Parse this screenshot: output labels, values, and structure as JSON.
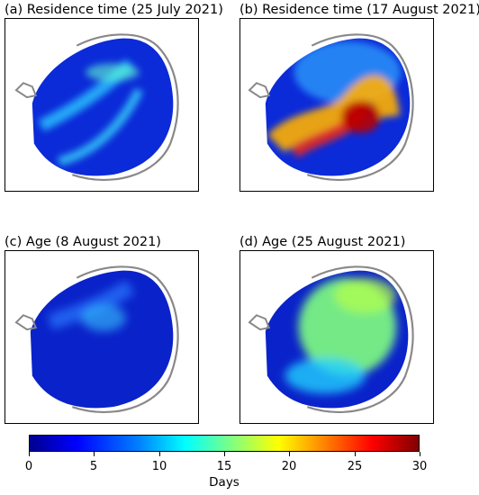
{
  "panels": [
    {
      "title": "(a) Residence time (25 July 2021)"
    },
    {
      "title": "(b) Residence time (17 August 2021)"
    },
    {
      "title": "(c) Age (8 August 2021)"
    },
    {
      "title": "(d) Age (25 August 2021)"
    }
  ],
  "colorbar": {
    "label": "Days",
    "ticks": [
      "0",
      "5",
      "10",
      "15",
      "20",
      "25",
      "30"
    ],
    "range": [
      0,
      30
    ],
    "colormap": "jet"
  }
}
